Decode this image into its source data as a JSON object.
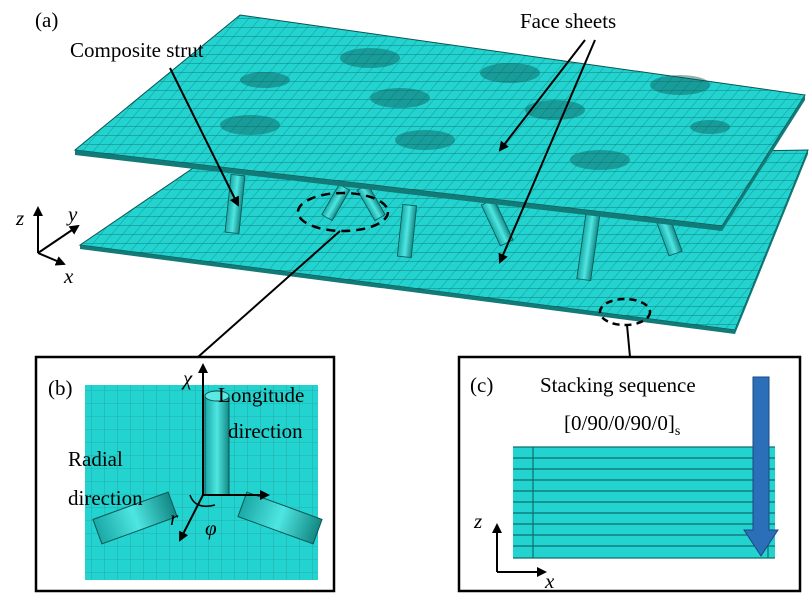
{
  "panel_a": {
    "label": "(a)",
    "face_sheets": "Face sheets",
    "composite_strut": "Composite strut",
    "axes": {
      "z": "z",
      "y": "y",
      "x": "x"
    }
  },
  "panel_b": {
    "label": "(b)",
    "axis_chi": "χ",
    "longitude": [
      "Longitude",
      "direction"
    ],
    "radial": [
      "Radial",
      "direction"
    ],
    "r": "r",
    "phi": "φ"
  },
  "panel_c": {
    "label": "(c)",
    "stacking": "Stacking sequence",
    "sequence": "[0/90/0/90/0]",
    "subscript": "s",
    "axes": {
      "z": "z",
      "x": "x"
    }
  }
}
